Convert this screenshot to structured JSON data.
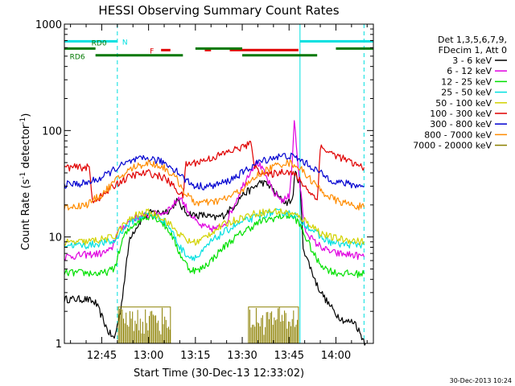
{
  "chart_data": {
    "type": "line",
    "title": "HESSI Observing Summary Count Rates",
    "xlabel": "Start Time (30-Dec-13 12:33:02)",
    "ylabel_main": "Count Rate (s",
    "ylabel_sup1": "-1",
    "ylabel_mid": " detector",
    "ylabel_sup2": "-1",
    "ylabel_end": ")",
    "y_scale": "log",
    "ylim": [
      1,
      1000
    ],
    "xlim": [
      "12:33:02",
      "14:12:00"
    ],
    "y_ticks": [
      {
        "value": 1,
        "label": "1"
      },
      {
        "value": 10,
        "label": "10"
      },
      {
        "value": 100,
        "label": "100"
      },
      {
        "value": 1000,
        "label": "1000"
      }
    ],
    "x_ticks": [
      {
        "value": "12:45",
        "label": "12:45"
      },
      {
        "value": "13:00",
        "label": "13:00"
      },
      {
        "value": "13:15",
        "label": "13:15"
      },
      {
        "value": "13:30",
        "label": "13:30"
      },
      {
        "value": "13:45",
        "label": "13:45"
      },
      {
        "value": "14:00",
        "label": "14:00"
      }
    ],
    "legend": {
      "placement": "right",
      "header": [
        "Det 1,3,5,6,7,9,",
        "FDecim 1, Att 0"
      ],
      "entries": [
        {
          "label": "3 - 6 keV",
          "color": "#000000"
        },
        {
          "label": "6 - 12 keV",
          "color": "#e000e0"
        },
        {
          "label": "12 - 25 keV",
          "color": "#00e000"
        },
        {
          "label": "25 - 50 keV",
          "color": "#00e0e0"
        },
        {
          "label": "50 - 100 keV",
          "color": "#d2d200"
        },
        {
          "label": "100 - 300 keV",
          "color": "#e00000"
        },
        {
          "label": "300 - 800 keV",
          "color": "#0000d0"
        },
        {
          "label": "800 - 7000 keV",
          "color": "#ff8c00"
        },
        {
          "label": "7000 - 20000 keV",
          "color": "#8c8000"
        }
      ]
    },
    "flag_bars": [
      {
        "label": "N",
        "color": "#00e0e0",
        "y": 690,
        "segments": [
          [
            "12:33:02",
            "12:50:00"
          ],
          [
            "13:48:30",
            "14:12:00"
          ]
        ]
      },
      {
        "label": "F",
        "color": "#e00000",
        "y": 570,
        "segments": [
          [
            "13:04:00",
            "13:07:00"
          ],
          [
            "13:18:00",
            "13:20:00"
          ],
          [
            "13:26:00",
            "13:48:00"
          ]
        ]
      },
      {
        "label": "RD0",
        "color": "#007800",
        "y": 590,
        "segments": [
          [
            "12:33:02",
            "12:43:00"
          ],
          [
            "13:15:00",
            "13:30:00"
          ],
          [
            "14:00:00",
            "14:12:00"
          ]
        ]
      },
      {
        "label": "RD6",
        "color": "#007800",
        "y": 510,
        "segments": [
          [
            "12:43:00",
            "13:11:00"
          ],
          [
            "13:30:00",
            "13:54:00"
          ]
        ]
      }
    ],
    "night_boundaries": [
      {
        "time": "12:50:00",
        "style": "dashed"
      },
      {
        "time": "13:48:30",
        "style": "solid"
      },
      {
        "time": "14:09:00",
        "style": "dashed"
      }
    ],
    "series": [
      {
        "name": "3 - 6 keV",
        "color": "#000000",
        "points": [
          [
            "12:33:00",
            2.6
          ],
          [
            "12:40:00",
            2.6
          ],
          [
            "12:43:00",
            2.4
          ],
          [
            "12:45:00",
            1.8
          ],
          [
            "12:47:00",
            1.3
          ],
          [
            "12:49:00",
            1.1
          ],
          [
            "12:51:00",
            2.0
          ],
          [
            "12:54:00",
            10
          ],
          [
            "12:58:00",
            15
          ],
          [
            "13:01:00",
            17
          ],
          [
            "13:04:00",
            17
          ],
          [
            "13:07:00",
            18
          ],
          [
            "13:09:00",
            22
          ],
          [
            "13:12:00",
            17
          ],
          [
            "13:15:00",
            16
          ],
          [
            "13:18:00",
            16
          ],
          [
            "13:21:00",
            15
          ],
          [
            "13:24:00",
            16
          ],
          [
            "13:27:00",
            19
          ],
          [
            "13:30:00",
            25
          ],
          [
            "13:33:00",
            28
          ],
          [
            "13:36:00",
            33
          ],
          [
            "13:39:00",
            30
          ],
          [
            "13:42:00",
            23
          ],
          [
            "13:44:00",
            21
          ],
          [
            "13:46:00",
            22
          ],
          [
            "13:47:00",
            40
          ],
          [
            "13:48:30",
            32
          ],
          [
            "13:49:30",
            8
          ],
          [
            "13:51:00",
            6
          ],
          [
            "13:54:00",
            3.5
          ],
          [
            "13:57:00",
            2.5
          ],
          [
            "14:00:00",
            1.9
          ],
          [
            "14:03:00",
            1.6
          ],
          [
            "14:06:00",
            1.6
          ],
          [
            "14:08:00",
            1.2
          ],
          [
            "14:09:30",
            1.0
          ]
        ]
      },
      {
        "name": "6 - 12 keV",
        "color": "#e000e0",
        "points": [
          [
            "12:33:00",
            6.5
          ],
          [
            "12:40:00",
            6.8
          ],
          [
            "12:45:00",
            7
          ],
          [
            "12:48:00",
            7.5
          ],
          [
            "12:50:00",
            11
          ],
          [
            "12:55:00",
            15
          ],
          [
            "13:00:00",
            16
          ],
          [
            "13:05:00",
            17
          ],
          [
            "13:08:00",
            20
          ],
          [
            "13:10:00",
            24
          ],
          [
            "13:13:00",
            17
          ],
          [
            "13:16:00",
            13
          ],
          [
            "13:19:00",
            12
          ],
          [
            "13:22:00",
            12
          ],
          [
            "13:25:00",
            14
          ],
          [
            "13:28:00",
            22
          ],
          [
            "13:31:00",
            34
          ],
          [
            "13:33:00",
            44
          ],
          [
            "13:35:00",
            50
          ],
          [
            "13:37:00",
            40
          ],
          [
            "13:40:00",
            26
          ],
          [
            "13:43:00",
            22
          ],
          [
            "13:45:00",
            24
          ],
          [
            "13:46:00",
            50
          ],
          [
            "13:46:40",
            130
          ],
          [
            "13:47:20",
            70
          ],
          [
            "13:48:30",
            30
          ],
          [
            "13:50:00",
            12
          ],
          [
            "13:53:00",
            9
          ],
          [
            "13:57:00",
            7.5
          ],
          [
            "14:00:00",
            7
          ],
          [
            "14:05:00",
            6.8
          ],
          [
            "14:09:00",
            6.5
          ]
        ]
      },
      {
        "name": "12 - 25 keV",
        "color": "#00e000",
        "points": [
          [
            "12:33:00",
            4.6
          ],
          [
            "12:40:00",
            4.6
          ],
          [
            "12:45:00",
            4.5
          ],
          [
            "12:49:00",
            5
          ],
          [
            "12:52:00",
            10
          ],
          [
            "12:55:00",
            13
          ],
          [
            "12:58:00",
            15
          ],
          [
            "13:01:00",
            16
          ],
          [
            "13:04:00",
            14
          ],
          [
            "13:07:00",
            11
          ],
          [
            "13:10:00",
            7
          ],
          [
            "13:13:00",
            5
          ],
          [
            "13:16:00",
            4.8
          ],
          [
            "13:20:00",
            6
          ],
          [
            "13:24:00",
            8
          ],
          [
            "13:28:00",
            10
          ],
          [
            "13:32:00",
            12
          ],
          [
            "13:36:00",
            14
          ],
          [
            "13:40:00",
            15
          ],
          [
            "13:44:00",
            16
          ],
          [
            "13:47:00",
            15
          ],
          [
            "13:49:00",
            12
          ],
          [
            "13:51:00",
            9
          ],
          [
            "13:54:00",
            6
          ],
          [
            "13:57:00",
            5
          ],
          [
            "14:00:00",
            4.6
          ],
          [
            "14:05:00",
            4.5
          ],
          [
            "14:09:00",
            4.5
          ]
        ]
      },
      {
        "name": "25 - 50 keV",
        "color": "#00e0e0",
        "points": [
          [
            "12:33:00",
            8.5
          ],
          [
            "12:40:00",
            8.3
          ],
          [
            "12:45:00",
            8.8
          ],
          [
            "12:49:00",
            9
          ],
          [
            "12:52:00",
            12
          ],
          [
            "12:56:00",
            15
          ],
          [
            "13:00:00",
            16.5
          ],
          [
            "13:04:00",
            15
          ],
          [
            "13:07:00",
            12
          ],
          [
            "13:10:00",
            8
          ],
          [
            "13:13:00",
            6.5
          ],
          [
            "13:16:00",
            6.5
          ],
          [
            "13:20:00",
            9
          ],
          [
            "13:24:00",
            11
          ],
          [
            "13:28:00",
            13
          ],
          [
            "13:32:00",
            14.5
          ],
          [
            "13:36:00",
            16
          ],
          [
            "13:40:00",
            17
          ],
          [
            "13:44:00",
            17
          ],
          [
            "13:47:00",
            16
          ],
          [
            "13:49:00",
            14
          ],
          [
            "13:52:00",
            12
          ],
          [
            "13:55:00",
            10
          ],
          [
            "13:58:00",
            9
          ],
          [
            "14:02:00",
            8.5
          ],
          [
            "14:09:00",
            8.5
          ]
        ]
      },
      {
        "name": "50 - 100 keV",
        "color": "#d2d200",
        "points": [
          [
            "12:33:00",
            8.8
          ],
          [
            "12:40:00",
            9
          ],
          [
            "12:45:00",
            9.5
          ],
          [
            "12:49:00",
            10
          ],
          [
            "12:52:00",
            13
          ],
          [
            "12:56:00",
            16
          ],
          [
            "13:00:00",
            17
          ],
          [
            "13:04:00",
            15.5
          ],
          [
            "13:07:00",
            13
          ],
          [
            "13:10:00",
            10.5
          ],
          [
            "13:13:00",
            9
          ],
          [
            "13:16:00",
            9
          ],
          [
            "13:20:00",
            11
          ],
          [
            "13:24:00",
            13
          ],
          [
            "13:28:00",
            14.5
          ],
          [
            "13:32:00",
            16
          ],
          [
            "13:36:00",
            17
          ],
          [
            "13:40:00",
            17.5
          ],
          [
            "13:44:00",
            17
          ],
          [
            "13:47:00",
            16
          ],
          [
            "13:49:00",
            15
          ],
          [
            "13:52:00",
            13
          ],
          [
            "13:55:00",
            11
          ],
          [
            "13:58:00",
            10
          ],
          [
            "14:02:00",
            9.5
          ],
          [
            "14:09:00",
            9
          ]
        ]
      },
      {
        "name": "100 - 300 keV",
        "color": "#e00000",
        "points": [
          [
            "12:33:00",
            45
          ],
          [
            "12:41:00",
            45
          ],
          [
            "12:42:00",
            22
          ],
          [
            "12:45:00",
            24
          ],
          [
            "12:50:00",
            32
          ],
          [
            "12:55:00",
            38
          ],
          [
            "13:00:00",
            40
          ],
          [
            "13:05:00",
            36
          ],
          [
            "13:08:00",
            30
          ],
          [
            "13:11:00",
            24
          ],
          [
            "13:12:00",
            48
          ],
          [
            "13:15:00",
            50
          ],
          [
            "13:20:00",
            55
          ],
          [
            "13:25:00",
            62
          ],
          [
            "13:30:00",
            70
          ],
          [
            "13:33:00",
            75
          ],
          [
            "13:34:00",
            45
          ],
          [
            "13:38:00",
            38
          ],
          [
            "13:41:00",
            40
          ],
          [
            "13:44:00",
            42
          ],
          [
            "13:46:00",
            40
          ],
          [
            "13:48:00",
            35
          ],
          [
            "13:50:00",
            30
          ],
          [
            "13:52:00",
            26
          ],
          [
            "13:54:00",
            22
          ],
          [
            "13:55:00",
            70
          ],
          [
            "13:58:00",
            62
          ],
          [
            "14:02:00",
            55
          ],
          [
            "14:06:00",
            48
          ],
          [
            "14:09:00",
            45
          ]
        ]
      },
      {
        "name": "300 - 800 keV",
        "color": "#0000d0",
        "points": [
          [
            "12:33:00",
            31
          ],
          [
            "12:40:00",
            32
          ],
          [
            "12:45:00",
            36
          ],
          [
            "12:50:00",
            45
          ],
          [
            "12:55:00",
            52
          ],
          [
            "13:00:00",
            55
          ],
          [
            "13:05:00",
            50
          ],
          [
            "13:09:00",
            42
          ],
          [
            "13:12:00",
            34
          ],
          [
            "13:15:00",
            30
          ],
          [
            "13:20:00",
            30
          ],
          [
            "13:25:00",
            33
          ],
          [
            "13:30:00",
            40
          ],
          [
            "13:35:00",
            50
          ],
          [
            "13:40:00",
            56
          ],
          [
            "13:44:00",
            58
          ],
          [
            "13:47:00",
            56
          ],
          [
            "13:50:00",
            50
          ],
          [
            "13:53:00",
            44
          ],
          [
            "13:56:00",
            38
          ],
          [
            "14:00:00",
            33
          ],
          [
            "14:05:00",
            31
          ],
          [
            "14:09:00",
            30
          ]
        ]
      },
      {
        "name": "800 - 7000 keV",
        "color": "#ff8c00",
        "points": [
          [
            "12:33:00",
            19
          ],
          [
            "12:40:00",
            20
          ],
          [
            "12:45:00",
            25
          ],
          [
            "12:50:00",
            35
          ],
          [
            "12:55:00",
            45
          ],
          [
            "13:00:00",
            50
          ],
          [
            "13:05:00",
            45
          ],
          [
            "13:09:00",
            35
          ],
          [
            "13:12:00",
            25
          ],
          [
            "13:15:00",
            21
          ],
          [
            "13:20:00",
            21
          ],
          [
            "13:25:00",
            23
          ],
          [
            "13:30:00",
            28
          ],
          [
            "13:35:00",
            38
          ],
          [
            "13:40:00",
            46
          ],
          [
            "13:44:00",
            50
          ],
          [
            "13:47:00",
            48
          ],
          [
            "13:50:00",
            40
          ],
          [
            "13:53:00",
            32
          ],
          [
            "13:56:00",
            26
          ],
          [
            "14:00:00",
            22
          ],
          [
            "14:05:00",
            20
          ],
          [
            "14:09:00",
            19
          ]
        ]
      },
      {
        "name": "7000 - 20000 keV",
        "color": "#8c8000",
        "points": [
          [
            "12:50:20",
            1.0
          ],
          [
            "12:50:20",
            2.2
          ],
          [
            "13:07:00",
            2.2
          ],
          [
            "13:07:00",
            1.0
          ],
          [
            "13:32:00",
            1.0
          ],
          [
            "13:32:00",
            2.2
          ],
          [
            "13:48:00",
            2.2
          ],
          [
            "13:48:00",
            1.0
          ]
        ]
      }
    ],
    "footer_date": "30-Dec-2013 10:24"
  }
}
